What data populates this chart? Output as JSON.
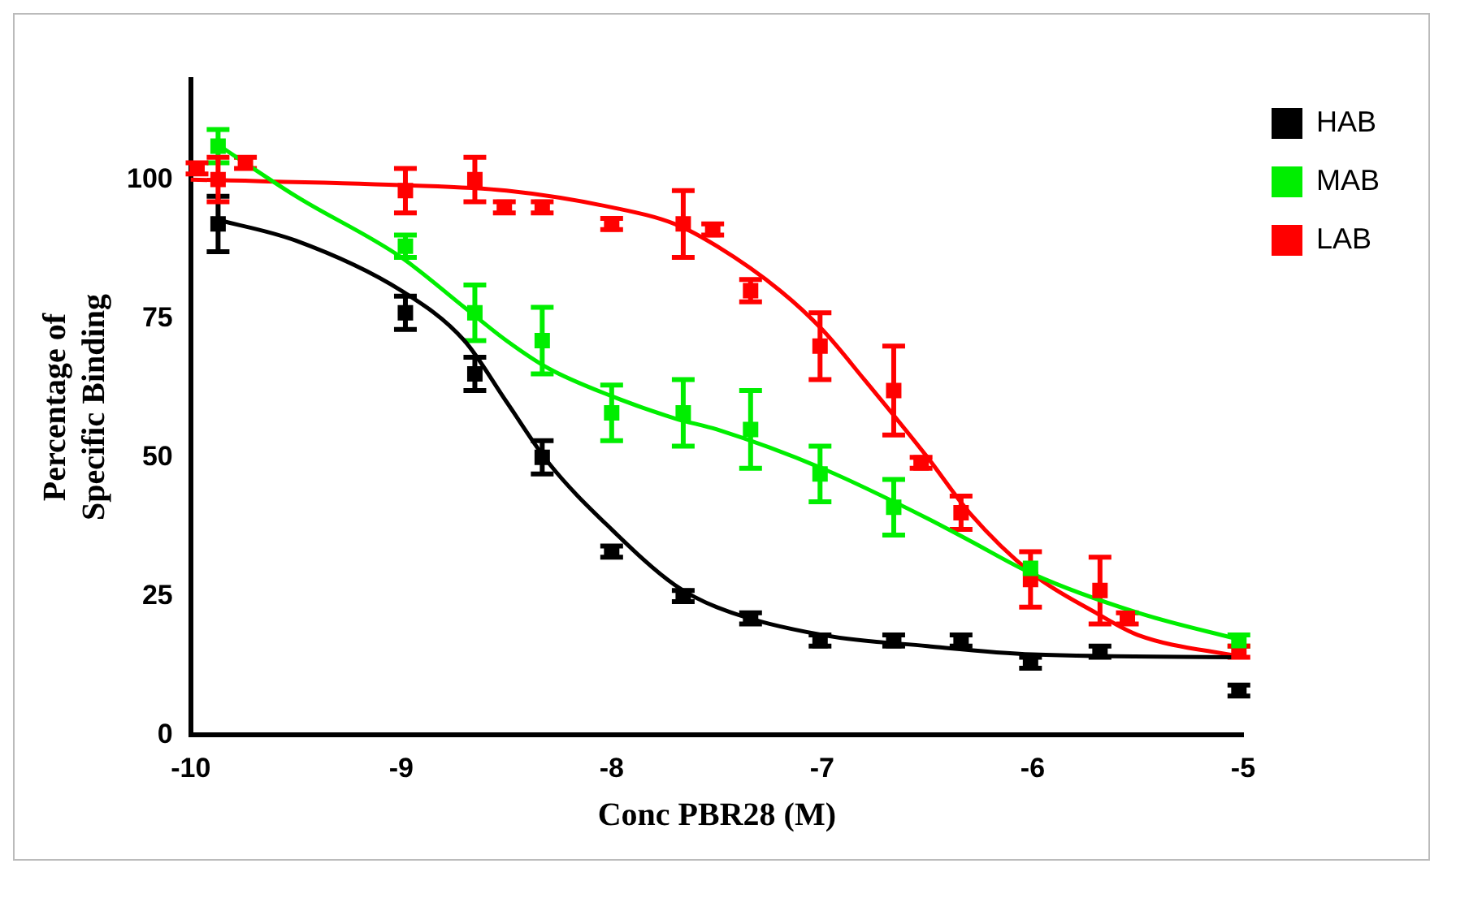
{
  "chart_data": {
    "type": "scatter",
    "xlabel": "Conc PBR28 (M)",
    "ylabel": "Percentage of\nSpecific Binding",
    "xlim": [
      -10,
      -5
    ],
    "xticks": [
      -10,
      -9,
      -8,
      -7,
      -6,
      -5
    ],
    "ylim": [
      0,
      118
    ],
    "yticks": [
      0,
      25,
      50,
      75,
      100
    ],
    "grid": false,
    "legend": "right",
    "marker": "square",
    "series": [
      {
        "name": "HAB",
        "type": "scatter",
        "color": "#000000",
        "x": [
          -9.87,
          -8.98,
          -8.65,
          -8.33,
          -8.0,
          -7.66,
          -7.34,
          -7.01,
          -6.66,
          -6.34,
          -6.01,
          -5.68,
          -5.02
        ],
        "values": [
          92,
          76,
          65,
          50,
          33,
          25,
          21,
          17,
          17,
          17,
          13,
          15,
          8
        ],
        "errors": [
          5,
          3,
          3,
          3,
          1,
          1,
          1,
          1,
          1,
          1,
          1,
          1,
          1
        ]
      },
      {
        "name": "MAB",
        "type": "scatter",
        "color": "#00ee00",
        "x": [
          -9.87,
          -8.98,
          -8.65,
          -8.33,
          -8.0,
          -7.66,
          -7.34,
          -7.01,
          -6.66,
          -6.01,
          -5.02
        ],
        "values": [
          106,
          88,
          76,
          71,
          58,
          58,
          55,
          47,
          41,
          30,
          17
        ],
        "errors": [
          3,
          2,
          5,
          6,
          5,
          6,
          7,
          5,
          5,
          null,
          1
        ]
      },
      {
        "name": "LAB",
        "type": "scatter",
        "color": "#ff0000",
        "x": [
          -9.97,
          -9.87,
          -9.74,
          -8.98,
          -8.65,
          -8.51,
          -8.33,
          -8.0,
          -7.66,
          -7.52,
          -7.34,
          -7.01,
          -6.66,
          -6.53,
          -6.34,
          -6.01,
          -5.68,
          -5.55,
          -5.02
        ],
        "values": [
          102,
          100,
          103,
          98,
          100,
          95,
          95,
          92,
          92,
          91,
          80,
          70,
          62,
          49,
          40,
          28,
          26,
          21,
          15
        ],
        "errors": [
          1,
          4,
          1,
          4,
          4,
          1,
          1,
          1,
          6,
          1,
          2,
          6,
          8,
          1,
          3,
          5,
          6,
          1,
          1
        ]
      },
      {
        "type": "line",
        "color": "#000000",
        "marker": "none",
        "line_style": "solid",
        "x": [
          -9.9,
          -9.5,
          -9,
          -8.7,
          -8.5,
          -8.3,
          -8,
          -7.7,
          -7.5,
          -7,
          -6.5,
          -6,
          -5
        ],
        "values": [
          93,
          89,
          80,
          71,
          60,
          49,
          37,
          27,
          23,
          18,
          16,
          14.5,
          14
        ]
      },
      {
        "type": "line",
        "color": "#00ee00",
        "marker": "none",
        "line_style": "solid",
        "x": [
          -9.9,
          -9.5,
          -9,
          -8.7,
          -8.5,
          -8.3,
          -8,
          -7.7,
          -7.5,
          -7,
          -6.5,
          -6.3,
          -6,
          -5.5,
          -5
        ],
        "values": [
          107,
          97,
          86,
          77,
          71,
          66,
          61,
          57,
          55,
          48,
          39,
          35,
          29,
          22,
          17
        ]
      },
      {
        "type": "line",
        "color": "#ff0000",
        "marker": "none",
        "line_style": "solid",
        "x": [
          -10,
          -9,
          -8.5,
          -8,
          -7.7,
          -7.5,
          -7.2,
          -7,
          -6.8,
          -6.5,
          -6.3,
          -6,
          -5.7,
          -5.5,
          -5
        ],
        "values": [
          100,
          99,
          98,
          95,
          92,
          88,
          80,
          73,
          64,
          50,
          40,
          29,
          22,
          18,
          14
        ]
      }
    ]
  }
}
